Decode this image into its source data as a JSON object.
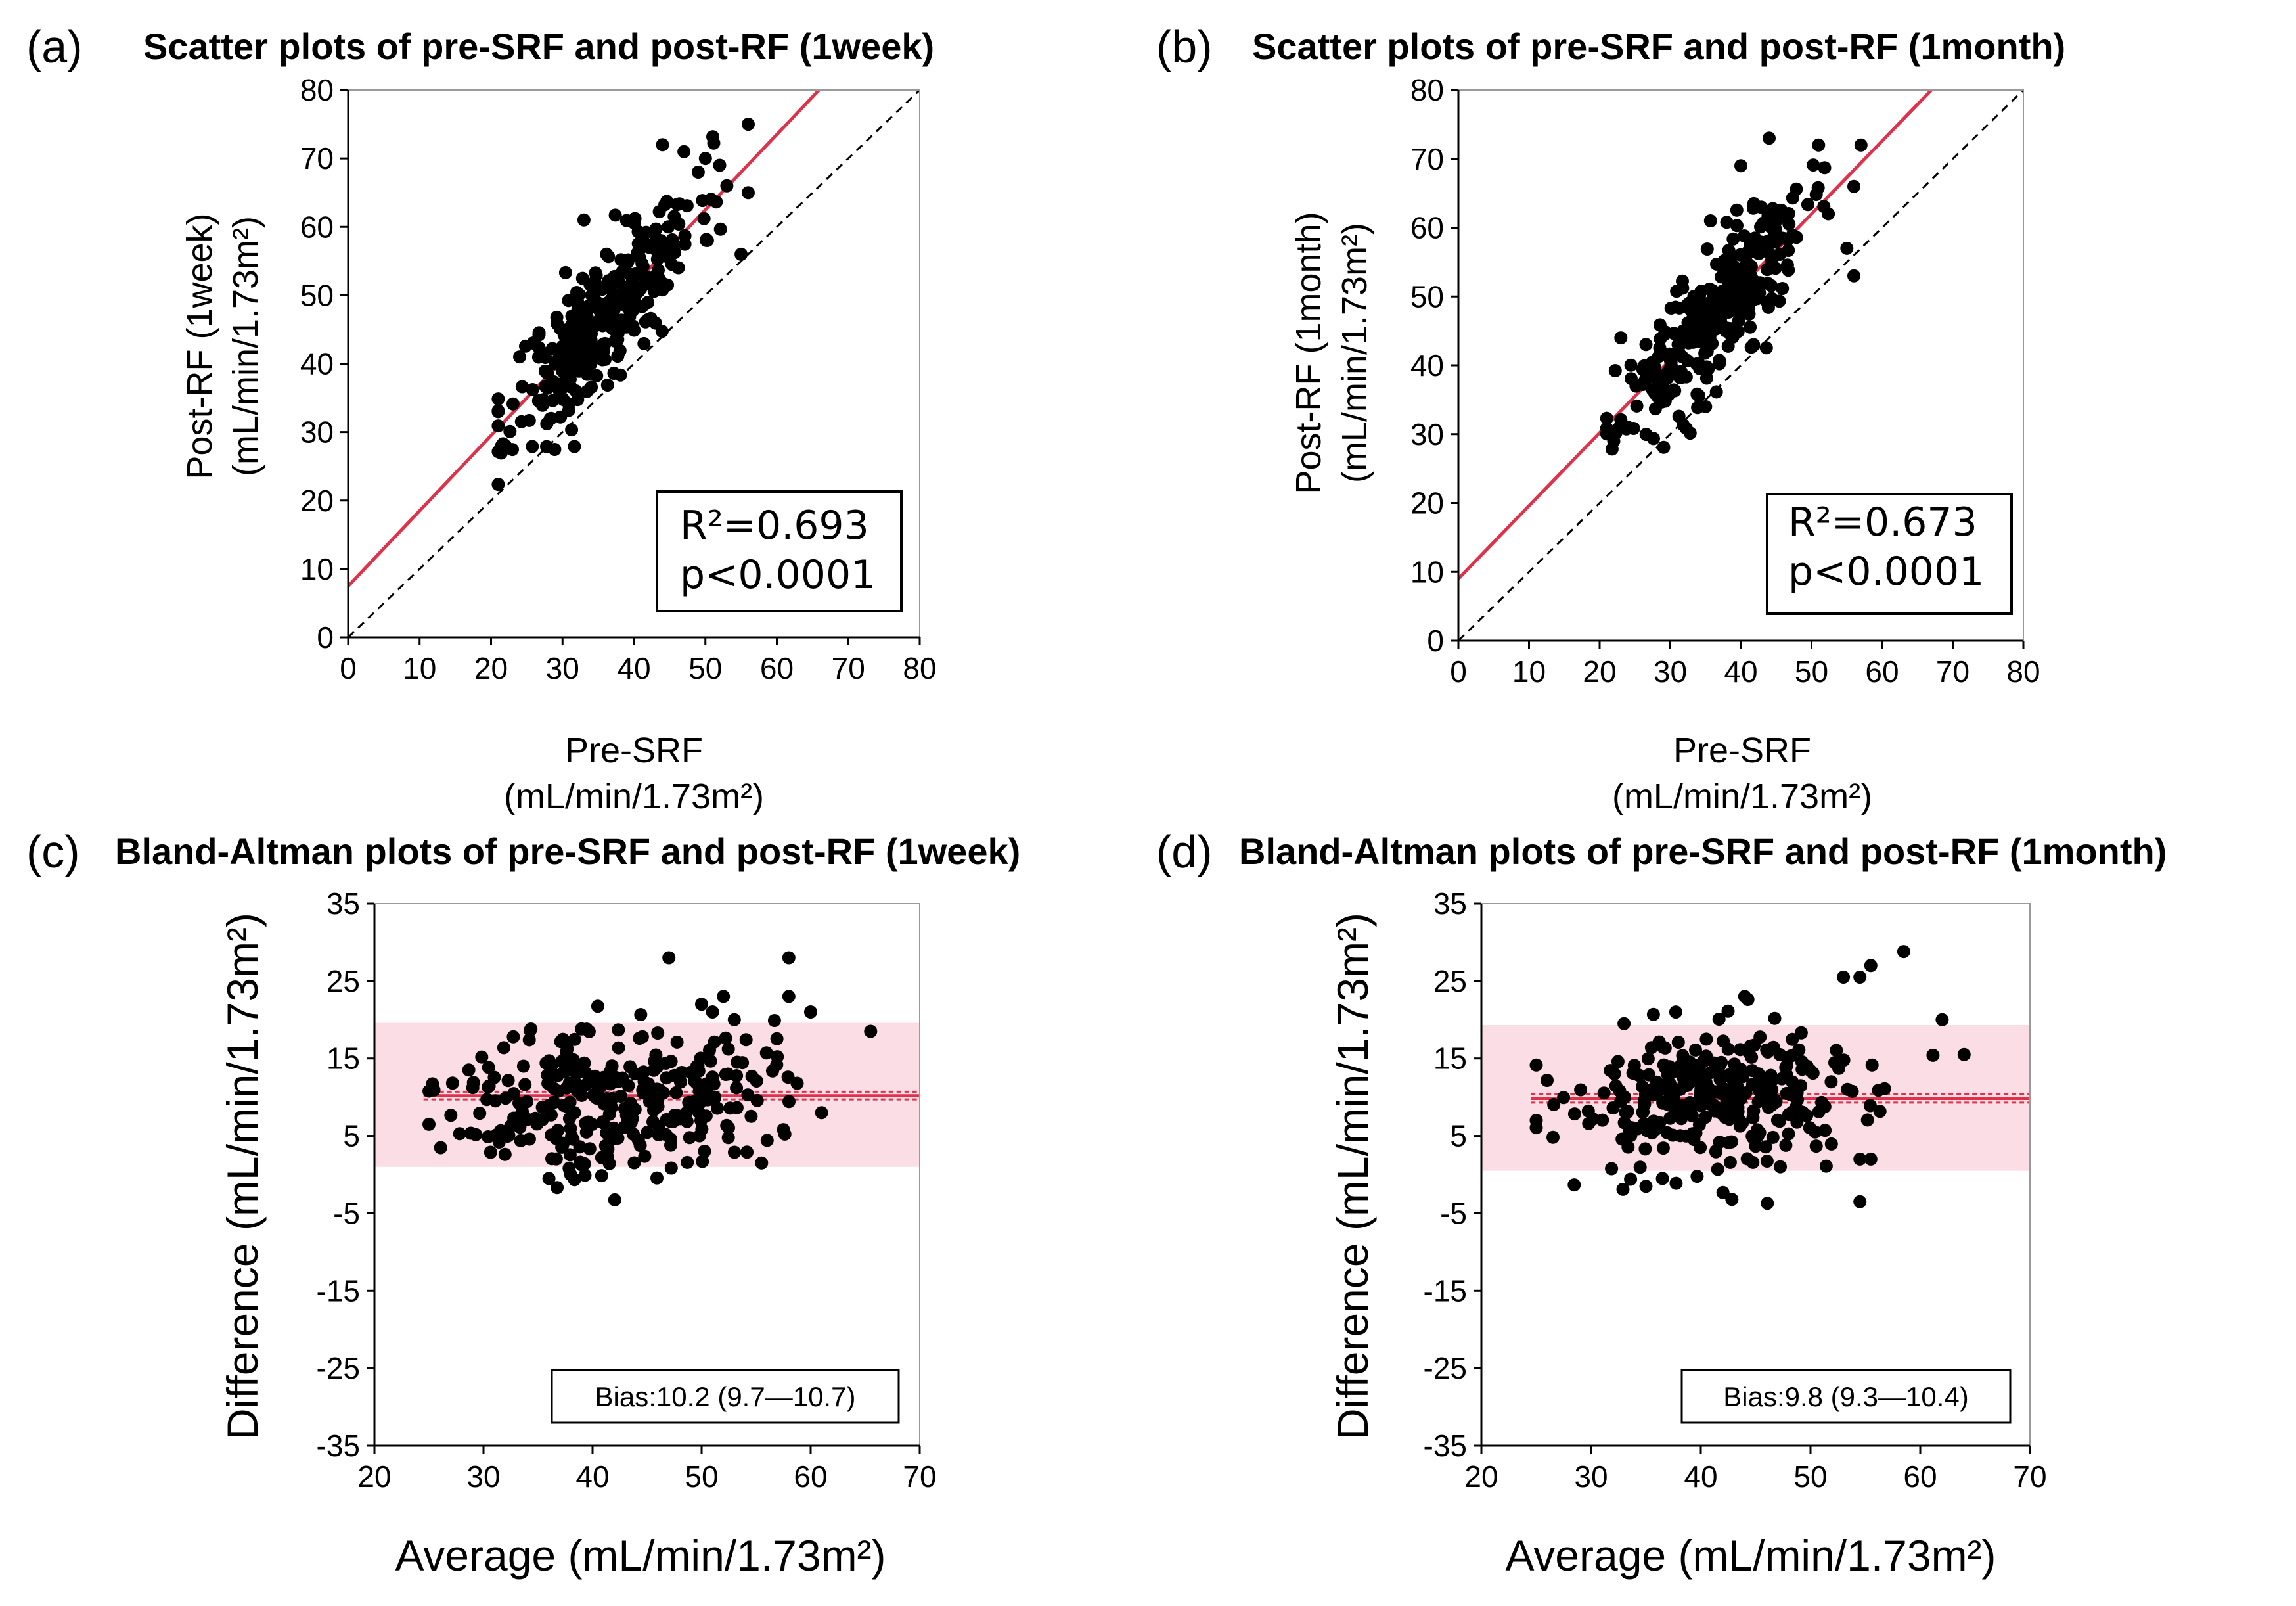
{
  "colors": {
    "regression": "#e0314a",
    "identity": "#000000",
    "points": "#000000",
    "band": "#fadde5",
    "bias_line": "#e0314a"
  },
  "chart_data": [
    {
      "id": "a",
      "type": "scatter",
      "panel_label": "(a)",
      "title": "Scatter plots of pre-SRF and post-RF (1week)",
      "xlabel": [
        "Pre-SRF",
        "(mL/min/1.73m²)"
      ],
      "ylabel": [
        "Post-RF (1week)",
        "(mL/min/1.73m²)"
      ],
      "xlim": [
        0,
        80
      ],
      "ylim": [
        0,
        80
      ],
      "xticks": [
        0,
        10,
        20,
        30,
        40,
        50,
        60,
        70,
        80
      ],
      "yticks": [
        0,
        10,
        20,
        30,
        40,
        50,
        60,
        70,
        80
      ],
      "regression": {
        "intercept": 7.5,
        "slope": 1.1
      },
      "identity_line": true,
      "stats": [
        "R²=0.693",
        "p<0.0001"
      ],
      "point_cloud": {
        "n": 300,
        "x_mean": 36,
        "x_sd": 6.5,
        "resid_sd": 4.8,
        "x_range": [
          21,
          57
        ],
        "seed": 11,
        "extra": [
          [
            44,
            72
          ],
          [
            56,
            75
          ],
          [
            47,
            71
          ],
          [
            50,
            70
          ],
          [
            52,
            69
          ],
          [
            49,
            68
          ],
          [
            53,
            66
          ],
          [
            55,
            56
          ],
          [
            56,
            65
          ],
          [
            33,
            61
          ],
          [
            22,
            28
          ],
          [
            21,
            33
          ],
          [
            24,
            41
          ]
        ]
      }
    },
    {
      "id": "b",
      "type": "scatter",
      "panel_label": "(b)",
      "title": "Scatter plots of pre-SRF and post-RF (1month)",
      "xlabel": [
        "Pre-SRF",
        "(mL/min/1.73m²)"
      ],
      "ylabel": [
        "Post-RF (1month)",
        "(mL/min/1.73m²)"
      ],
      "xlim": [
        0,
        80
      ],
      "ylim": [
        0,
        80
      ],
      "xticks": [
        0,
        10,
        20,
        30,
        40,
        50,
        60,
        70,
        80
      ],
      "yticks": [
        0,
        10,
        20,
        30,
        40,
        50,
        60,
        70,
        80
      ],
      "regression": {
        "intercept": 9.0,
        "slope": 1.06
      },
      "identity_line": true,
      "stats": [
        "R²=0.673",
        "p<0.0001"
      ],
      "point_cloud": {
        "n": 300,
        "x_mean": 36,
        "x_sd": 6.5,
        "resid_sd": 4.6,
        "x_range": [
          21,
          57
        ],
        "seed": 23,
        "extra": [
          [
            44,
            73
          ],
          [
            40,
            69
          ],
          [
            51,
            72
          ],
          [
            57,
            72
          ],
          [
            56,
            66
          ],
          [
            55,
            57
          ],
          [
            56,
            53
          ],
          [
            22,
            29
          ],
          [
            24,
            31
          ],
          [
            23,
            44
          ],
          [
            35,
            34
          ]
        ]
      }
    },
    {
      "id": "c",
      "type": "scatter",
      "panel_label": "(c)",
      "title": "Bland-Altman plots of pre-SRF and post-RF (1week)",
      "xlabel": "Average (mL/min/1.73m²)",
      "ylabel": "Difference (mL/min/1.73m²)",
      "xlim": [
        20,
        70
      ],
      "ylim": [
        -35,
        35
      ],
      "xticks": [
        20,
        30,
        40,
        50,
        60,
        70
      ],
      "yticks": [
        -35,
        -25,
        -15,
        -5,
        5,
        15,
        25,
        35
      ],
      "bias": 10.2,
      "bias_ci": [
        9.7,
        10.7
      ],
      "loa": [
        1.0,
        19.6
      ],
      "x_start": 24.5,
      "bias_label": "Bias:10.2 (9.7—10.7)",
      "point_cloud": {
        "n": 300,
        "x_mean": 42,
        "x_sd": 7,
        "d_mean": 10.2,
        "d_sd": 4.8,
        "x_range": [
          25,
          62
        ],
        "seed": 37,
        "extra": [
          [
            47,
            28
          ],
          [
            58,
            28
          ],
          [
            52,
            23
          ],
          [
            50,
            22
          ],
          [
            51,
            21
          ],
          [
            60,
            21
          ],
          [
            58,
            23
          ],
          [
            53,
            20
          ],
          [
            65.5,
            18.5
          ],
          [
            36,
            -0.5
          ],
          [
            38,
            0
          ],
          [
            55.5,
            1.5
          ],
          [
            57.5,
            5.8
          ],
          [
            61,
            8
          ],
          [
            25,
            6.5
          ]
        ]
      }
    },
    {
      "id": "d",
      "type": "scatter",
      "panel_label": "(d)",
      "title": "Bland-Altman plots of pre-SRF and post-RF (1month)",
      "xlabel": "Average (mL/min/1.73m²)",
      "ylabel": "Difference (mL/min/1.73m²)",
      "xlim": [
        20,
        70
      ],
      "ylim": [
        -35,
        35
      ],
      "xticks": [
        20,
        30,
        40,
        50,
        60,
        70
      ],
      "yticks": [
        -35,
        -25,
        -15,
        -5,
        5,
        15,
        25,
        35
      ],
      "bias": 9.8,
      "bias_ci": [
        9.3,
        10.4
      ],
      "loa": [
        0.5,
        19.3
      ],
      "x_start": 24.5,
      "bias_label": "Bias:9.8 (9.3—10.4)",
      "point_cloud": {
        "n": 300,
        "x_mean": 42,
        "x_sd": 7,
        "d_mean": 9.8,
        "d_sd": 4.6,
        "x_range": [
          25,
          62
        ],
        "seed": 53,
        "extra": [
          [
            58.5,
            28.8
          ],
          [
            55.5,
            27
          ],
          [
            53,
            25.5
          ],
          [
            54.5,
            25.5
          ],
          [
            62,
            20
          ],
          [
            64,
            15.5
          ],
          [
            54.5,
            -3.5
          ],
          [
            55.5,
            2
          ],
          [
            54.5,
            2
          ],
          [
            35,
            -1.5
          ],
          [
            36.5,
            -0.5
          ],
          [
            44,
            23
          ],
          [
            33,
            19.5
          ],
          [
            25,
            7
          ]
        ]
      }
    }
  ]
}
